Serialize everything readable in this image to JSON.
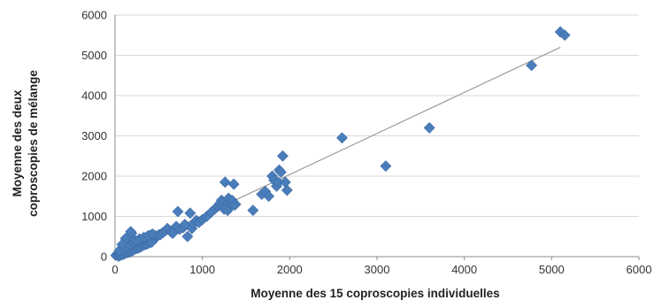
{
  "chart_data": {
    "type": "scatter",
    "xlabel": "Moyenne des 15 coproscopies individuelles",
    "ylabel_lines": [
      "Moyenne des deux",
      "coproscopies de mélange"
    ],
    "xlim": [
      0,
      6000
    ],
    "ylim": [
      0,
      6000
    ],
    "x_ticks": [
      "0",
      "1000",
      "2000",
      "3000",
      "4000",
      "5000",
      "6000"
    ],
    "y_ticks": [
      "0",
      "1000",
      "2000",
      "3000",
      "4000",
      "5000",
      "6000"
    ],
    "grid": "horizontal",
    "legend": "none",
    "marker": "diamond",
    "marker_color": "#4a7ebb",
    "trendline": {
      "type": "linear",
      "from": [
        0,
        0
      ],
      "to": [
        5100,
        5200
      ],
      "color": "#9a9a9a"
    },
    "series": [
      {
        "x": [
          10,
          20,
          30,
          40,
          50,
          60,
          70,
          80,
          90,
          100,
          110,
          120,
          130,
          140,
          150,
          160,
          170,
          180,
          190,
          200,
          210,
          220,
          230,
          240,
          250,
          260,
          270,
          280,
          290,
          300,
          310,
          320,
          330,
          340,
          350,
          360,
          370,
          380,
          390,
          400,
          410,
          420,
          440,
          460,
          480,
          500,
          40,
          60,
          80,
          100,
          120,
          140,
          160,
          180,
          200,
          220,
          240,
          260,
          280,
          300,
          320,
          340,
          360,
          380,
          400,
          420,
          50,
          90,
          130,
          170,
          210,
          250,
          290,
          330,
          370,
          410,
          190,
          230,
          280,
          330,
          380,
          430,
          180,
          120,
          80,
          520,
          550,
          580,
          600,
          640,
          660,
          700,
          720,
          740,
          780,
          800,
          830,
          860,
          880,
          900,
          930,
          960,
          1000,
          1050,
          1100,
          1150,
          1180,
          1200,
          1220,
          1240,
          1260,
          1280,
          1300,
          1320,
          1340,
          1360,
          1380,
          1250,
          1290,
          1370,
          1580,
          1680,
          1720,
          1760,
          1800,
          1820,
          1850,
          1870,
          1880,
          1900,
          1920,
          1950,
          1970,
          2600,
          3100,
          3600,
          4770,
          5100,
          5150
        ],
        "y": [
          30,
          50,
          80,
          60,
          100,
          90,
          120,
          150,
          130,
          170,
          140,
          200,
          180,
          220,
          250,
          210,
          240,
          280,
          260,
          300,
          270,
          320,
          290,
          340,
          310,
          360,
          330,
          380,
          350,
          400,
          370,
          420,
          390,
          440,
          410,
          450,
          430,
          470,
          460,
          480,
          500,
          450,
          480,
          520,
          500,
          540,
          10,
          30,
          50,
          60,
          90,
          100,
          110,
          130,
          150,
          180,
          200,
          210,
          230,
          250,
          280,
          300,
          310,
          330,
          350,
          360,
          150,
          220,
          260,
          300,
          340,
          380,
          420,
          460,
          500,
          540,
          580,
          400,
          440,
          480,
          520,
          560,
          620,
          450,
          300,
          550,
          600,
          650,
          700,
          620,
          580,
          750,
          1120,
          680,
          720,
          800,
          500,
          1080,
          700,
          820,
          900,
          850,
          920,
          1000,
          1100,
          1200,
          1250,
          1320,
          1400,
          1350,
          1850,
          1300,
          1450,
          1250,
          1400,
          1800,
          1300,
          1180,
          1150,
          1280,
          1150,
          1550,
          1620,
          1500,
          2000,
          1900,
          1750,
          1850,
          2150,
          2100,
          2500,
          1850,
          1650,
          2950,
          2250,
          3200,
          4750,
          5580,
          5500
        ]
      }
    ]
  }
}
